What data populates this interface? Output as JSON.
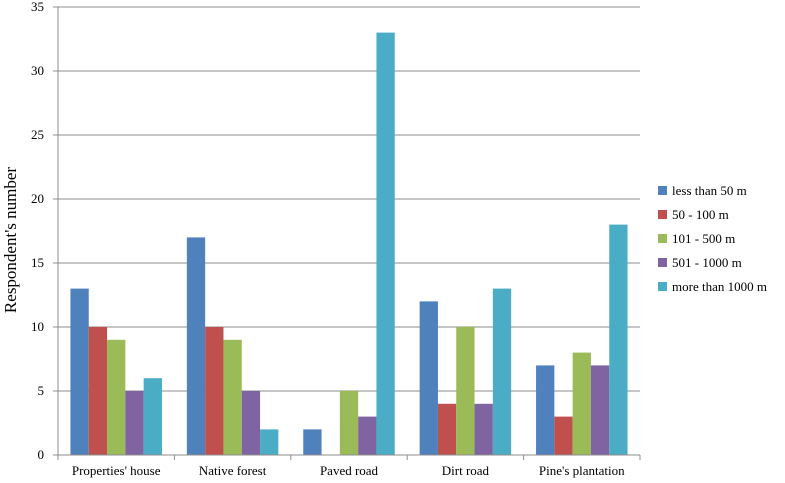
{
  "chart_data": {
    "type": "bar",
    "title": "",
    "xlabel": "",
    "ylabel": "Respondent's number",
    "ylim": [
      0,
      35
    ],
    "yticks": [
      0,
      5,
      10,
      15,
      20,
      25,
      30,
      35
    ],
    "grid": true,
    "legend_position": "right",
    "categories": [
      "Properties' house",
      "Native forest",
      "Paved road",
      "Dirt road",
      "Pine's plantation"
    ],
    "series": [
      {
        "name": "less than 50 m",
        "color": "#4F81BD",
        "values": [
          13,
          17,
          2,
          12,
          7
        ]
      },
      {
        "name": "50 - 100 m",
        "color": "#C0504D",
        "values": [
          10,
          10,
          0,
          4,
          3
        ]
      },
      {
        "name": "101 - 500 m",
        "color": "#9BBB59",
        "values": [
          9,
          9,
          5,
          10,
          8
        ]
      },
      {
        "name": "501 - 1000 m",
        "color": "#8064A2",
        "values": [
          5,
          5,
          3,
          4,
          7
        ]
      },
      {
        "name": "more than 1000 m",
        "color": "#4BACC6",
        "values": [
          6,
          2,
          33,
          13,
          18
        ]
      }
    ]
  }
}
